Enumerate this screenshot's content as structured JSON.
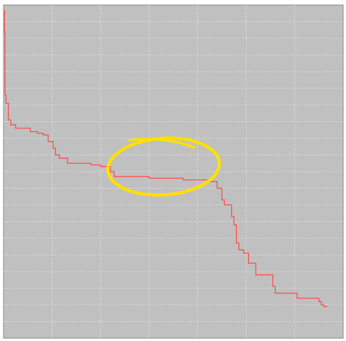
{
  "chart_data": {
    "type": "line",
    "step": true,
    "grid": true,
    "xlim": [
      0,
      7
    ],
    "ylim": [
      0,
      20
    ],
    "x_grid_step": 1,
    "y_grid_step": 1,
    "colors": {
      "plot_background": "#c0c0c0",
      "grid": "#e6e6e6",
      "frame": "#8a8a8a",
      "line": "#ff4d4d",
      "line_start": "#ff9a3c",
      "highlight": "#ffe000"
    },
    "series": [
      {
        "points": [
          [
            0.0,
            19.7
          ],
          [
            0.02,
            19.7
          ],
          [
            0.02,
            18.4
          ],
          [
            0.03,
            18.4
          ],
          [
            0.03,
            14.6
          ],
          [
            0.05,
            14.6
          ],
          [
            0.05,
            14.1
          ],
          [
            0.1,
            14.1
          ],
          [
            0.1,
            13.1
          ],
          [
            0.15,
            13.1
          ],
          [
            0.15,
            12.8
          ],
          [
            0.25,
            12.8
          ],
          [
            0.25,
            12.6
          ],
          [
            0.55,
            12.6
          ],
          [
            0.55,
            12.4
          ],
          [
            0.7,
            12.4
          ],
          [
            0.7,
            12.3
          ],
          [
            0.82,
            12.3
          ],
          [
            0.82,
            12.2
          ],
          [
            0.92,
            12.2
          ],
          [
            0.92,
            11.8
          ],
          [
            1.02,
            11.8
          ],
          [
            1.02,
            11.4
          ],
          [
            1.07,
            11.4
          ],
          [
            1.07,
            11.0
          ],
          [
            1.15,
            11.0
          ],
          [
            1.15,
            10.8
          ],
          [
            1.32,
            10.8
          ],
          [
            1.32,
            10.5
          ],
          [
            1.8,
            10.5
          ],
          [
            1.8,
            10.4
          ],
          [
            2.0,
            10.4
          ],
          [
            2.0,
            10.3
          ],
          [
            2.2,
            10.3
          ],
          [
            2.2,
            10.0
          ],
          [
            2.28,
            10.0
          ],
          [
            2.28,
            9.7
          ],
          [
            3.0,
            9.7
          ],
          [
            3.0,
            9.6
          ],
          [
            3.7,
            9.6
          ],
          [
            3.7,
            9.5
          ],
          [
            4.2,
            9.5
          ],
          [
            4.2,
            9.4
          ],
          [
            4.4,
            9.4
          ],
          [
            4.4,
            9.0
          ],
          [
            4.5,
            9.0
          ],
          [
            4.5,
            8.3
          ],
          [
            4.55,
            8.3
          ],
          [
            4.55,
            8.0
          ],
          [
            4.7,
            8.0
          ],
          [
            4.7,
            7.3
          ],
          [
            4.75,
            7.3
          ],
          [
            4.75,
            6.8
          ],
          [
            4.8,
            6.8
          ],
          [
            4.8,
            5.7
          ],
          [
            4.85,
            5.7
          ],
          [
            4.85,
            5.3
          ],
          [
            4.95,
            5.3
          ],
          [
            4.95,
            5.1
          ],
          [
            5.05,
            5.1
          ],
          [
            5.05,
            4.5
          ],
          [
            5.2,
            4.5
          ],
          [
            5.2,
            3.8
          ],
          [
            5.55,
            3.8
          ],
          [
            5.55,
            3.1
          ],
          [
            5.6,
            3.1
          ],
          [
            5.6,
            2.7
          ],
          [
            6.05,
            2.7
          ],
          [
            6.05,
            2.4
          ],
          [
            6.5,
            2.4
          ],
          [
            6.5,
            2.2
          ],
          [
            6.55,
            2.2
          ],
          [
            6.55,
            2.0
          ],
          [
            6.6,
            2.0
          ],
          [
            6.6,
            1.9
          ],
          [
            6.68,
            1.9
          ]
        ]
      }
    ],
    "highlight": {
      "shape": "ellipse",
      "x_range": [
        2.15,
        4.45
      ],
      "y_range": [
        8.6,
        12.0
      ]
    }
  }
}
